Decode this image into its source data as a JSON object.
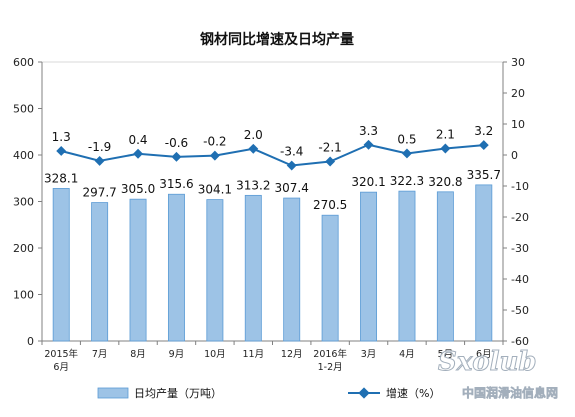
{
  "chart_data": {
    "type": "bar+line",
    "title": "钢材同比增速及日均产量",
    "categories": [
      "2015年\n6月",
      "7月",
      "8月",
      "9月",
      "10月",
      "11月",
      "12月",
      "2016年\n1-2月",
      "3月",
      "4月",
      "5月",
      "6月"
    ],
    "series": [
      {
        "name": "日均产量（万吨）",
        "type": "bar",
        "axis": "left",
        "color": "#9DC3E6",
        "values": [
          328.1,
          297.7,
          305.0,
          315.6,
          304.1,
          313.2,
          307.4,
          270.5,
          320.1,
          322.3,
          320.8,
          335.7
        ],
        "labels": [
          "328.1",
          "297.7",
          "305.0",
          "315.6",
          "304.1",
          "313.2",
          "307.4",
          "270.5",
          "320.1",
          "322.3",
          "320.8",
          "335.7"
        ]
      },
      {
        "name": "增速（%）",
        "type": "line",
        "axis": "right",
        "color": "#1F6FB2",
        "values": [
          1.3,
          -1.9,
          0.4,
          -0.6,
          -0.2,
          2.0,
          -3.4,
          -2.1,
          3.3,
          0.5,
          2.1,
          3.2
        ],
        "labels": [
          "1.3",
          "-1.9",
          "0.4",
          "-0.6",
          "-0.2",
          "2.0",
          "-3.4",
          "-2.1",
          "3.3",
          "0.5",
          "2.1",
          "3.2"
        ]
      }
    ],
    "y_left": {
      "min": 0,
      "max": 600,
      "ticks": [
        "0",
        "100",
        "200",
        "300",
        "400",
        "500",
        "600"
      ]
    },
    "y_right": {
      "min": -60,
      "max": 30,
      "ticks": [
        "-60",
        "-50",
        "-40",
        "-30",
        "-20",
        "-10",
        "0",
        "10",
        "20",
        "30"
      ]
    },
    "grid": false,
    "legend_position": "bottom"
  },
  "watermark": {
    "logo": "Sxolub",
    "text": "中国润滑油信息网"
  }
}
